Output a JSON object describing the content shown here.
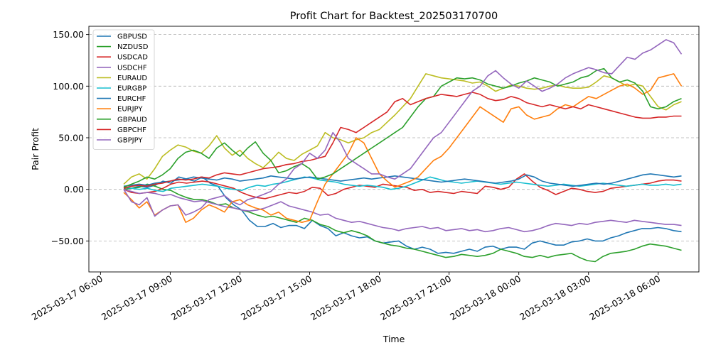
{
  "chart_data": {
    "type": "line",
    "title": "Profit Chart for Backtest_202503170700",
    "xlabel": "Time",
    "ylabel": "Pair Profit",
    "x_start": "2025-03-17 07:00",
    "x_end": "2025-03-18 07:00",
    "xlim": [
      "2025-03-17 05:30",
      "2025-03-18 07:45"
    ],
    "ylim": [
      -80,
      158
    ],
    "x_ticks": [
      "2025-03-17 06:00",
      "2025-03-17 09:00",
      "2025-03-17 12:00",
      "2025-03-17 15:00",
      "2025-03-17 18:00",
      "2025-03-17 21:00",
      "2025-03-18 00:00",
      "2025-03-18 03:00",
      "2025-03-18 06:00"
    ],
    "y_ticks": [
      "−50.00",
      "0.00",
      "50.00",
      "100.00",
      "150.00"
    ],
    "y_tick_values": [
      -50,
      0,
      50,
      100,
      150
    ],
    "grid": "y-dashed",
    "legend": "upper-left",
    "series": [
      {
        "name": "GBPUSD",
        "color": "#1f77b4",
        "values": [
          0,
          1,
          3,
          2,
          4,
          8,
          6,
          12,
          10,
          8,
          12,
          6,
          3,
          -8,
          -15,
          -20,
          -30,
          -36,
          -36,
          -33,
          -37,
          -35,
          -35,
          -38,
          -30,
          -35,
          -38,
          -45,
          -42,
          -45,
          -47,
          -46,
          -50,
          -52,
          -51,
          -50,
          -55,
          -58,
          -56,
          -58,
          -62,
          -61,
          -62,
          -60,
          -58,
          -60,
          -56,
          -55,
          -58,
          -56,
          -56,
          -58,
          -52,
          -50,
          -52,
          -54,
          -54,
          -51,
          -50,
          -48,
          -50,
          -50,
          -47,
          -45,
          -42,
          -40,
          -38,
          -38,
          -37,
          -38,
          -40,
          -41
        ]
      },
      {
        "name": "NZDUSD",
        "color": "#2ca02c",
        "values": [
          0,
          1,
          2,
          5,
          3,
          0,
          -1,
          -5,
          -8,
          -10,
          -10,
          -12,
          -15,
          -14,
          -18,
          -20,
          -22,
          -25,
          -27,
          -26,
          -28,
          -30,
          -32,
          -28,
          -30,
          -34,
          -36,
          -40,
          -42,
          -40,
          -42,
          -45,
          -50,
          -52,
          -54,
          -55,
          -57,
          -58,
          -60,
          -62,
          -64,
          -66,
          -65,
          -63,
          -64,
          -65,
          -64,
          -62,
          -58,
          -60,
          -62,
          -65,
          -66,
          -64,
          -66,
          -64,
          -63,
          -62,
          -66,
          -69,
          -70,
          -65,
          -62,
          -61,
          -60,
          -58,
          -55,
          -53,
          -54,
          -55,
          -57,
          -59
        ]
      },
      {
        "name": "USDCAD",
        "color": "#d62728",
        "values": [
          0,
          -3,
          -4,
          -3,
          -2,
          1,
          5,
          7,
          6,
          7,
          8,
          7,
          5,
          3,
          1,
          -3,
          -6,
          -8,
          -9,
          -7,
          -5,
          -3,
          -4,
          -2,
          2,
          1,
          -6,
          -4,
          0,
          2,
          4,
          3,
          2,
          5,
          4,
          3,
          2,
          -1,
          0,
          -3,
          -2,
          -3,
          -4,
          -2,
          -3,
          -4,
          3,
          2,
          0,
          2,
          10,
          15,
          8,
          2,
          -1,
          -5,
          -2,
          1,
          0,
          -2,
          -3,
          -2,
          1,
          2,
          3,
          4,
          5,
          6,
          8,
          9,
          9,
          8
        ]
      },
      {
        "name": "USDCHF",
        "color": "#9467bd",
        "values": [
          0,
          -2,
          -4,
          -3,
          -4,
          -6,
          -5,
          -8,
          -10,
          -12,
          -11,
          -13,
          -15,
          -17,
          -18,
          -20,
          -21,
          -20,
          -18,
          -15,
          -12,
          -16,
          -18,
          -20,
          -22,
          -25,
          -24,
          -28,
          -30,
          -32,
          -31,
          -33,
          -35,
          -37,
          -38,
          -40,
          -38,
          -37,
          -36,
          -38,
          -37,
          -40,
          -39,
          -38,
          -40,
          -39,
          -41,
          -40,
          -38,
          -37,
          -39,
          -41,
          -40,
          -38,
          -35,
          -33,
          -34,
          -35,
          -33,
          -34,
          -32,
          -31,
          -30,
          -31,
          -32,
          -30,
          -31,
          -32,
          -33,
          -34,
          -34,
          -35
        ]
      },
      {
        "name": "EURAUD",
        "color": "#bcbd22",
        "values": [
          5,
          12,
          15,
          10,
          20,
          32,
          38,
          43,
          41,
          37,
          35,
          42,
          52,
          40,
          33,
          38,
          30,
          25,
          21,
          28,
          36,
          30,
          28,
          34,
          38,
          42,
          55,
          50,
          48,
          45,
          48,
          50,
          55,
          58,
          65,
          72,
          80,
          88,
          100,
          112,
          110,
          108,
          107,
          106,
          105,
          103,
          104,
          100,
          95,
          98,
          101,
          100,
          98,
          97,
          98,
          100,
          101,
          99,
          98,
          98,
          99,
          104,
          110,
          108,
          104,
          100,
          102,
          100,
          90,
          80,
          77,
          82,
          85
        ]
      },
      {
        "name": "EURGBP",
        "color": "#17becf",
        "values": [
          2,
          1,
          0,
          1,
          -1,
          -2,
          1,
          2,
          3,
          4,
          5,
          4,
          3,
          1,
          0,
          -1,
          2,
          4,
          3,
          5,
          6,
          8,
          10,
          12,
          11,
          9,
          8,
          7,
          5,
          4,
          3,
          4,
          3,
          2,
          0,
          1,
          3,
          6,
          9,
          12,
          10,
          8,
          7,
          6,
          7,
          8,
          7,
          6,
          5,
          6,
          7,
          6,
          5,
          4,
          3,
          4,
          5,
          4,
          3,
          4,
          5,
          6,
          5,
          4,
          3,
          4,
          5,
          4,
          4,
          5,
          4,
          5
        ]
      },
      {
        "name": "EURCHF",
        "color": "#1f77b4",
        "values": [
          3,
          4,
          5,
          4,
          6,
          7,
          8,
          9,
          10,
          12,
          11,
          10,
          9,
          11,
          10,
          8,
          9,
          10,
          11,
          13,
          12,
          11,
          10,
          11,
          12,
          11,
          10,
          9,
          8,
          9,
          10,
          11,
          10,
          11,
          12,
          13,
          12,
          11,
          10,
          9,
          8,
          7,
          8,
          9,
          10,
          9,
          8,
          7,
          6,
          7,
          8,
          10,
          14,
          12,
          8,
          6,
          5,
          4,
          3,
          4,
          5,
          6,
          5,
          6,
          8,
          10,
          12,
          14,
          15,
          14,
          13,
          12,
          13
        ]
      },
      {
        "name": "EURJPY",
        "color": "#ff7f0e",
        "values": [
          -3,
          -10,
          -18,
          -12,
          -25,
          -20,
          -16,
          -15,
          -32,
          -28,
          -20,
          -15,
          -18,
          -22,
          -12,
          -10,
          -15,
          -18,
          -20,
          -25,
          -22,
          -28,
          -30,
          -32,
          -30,
          -12,
          5,
          15,
          25,
          35,
          50,
          45,
          30,
          15,
          8,
          2,
          5,
          8,
          12,
          20,
          28,
          32,
          40,
          50,
          60,
          70,
          80,
          75,
          70,
          65,
          78,
          80,
          72,
          68,
          70,
          72,
          78,
          82,
          80,
          85,
          90,
          88,
          92,
          96,
          100,
          102,
          98,
          92,
          96,
          108,
          110,
          112,
          100
        ]
      },
      {
        "name": "GBPAUD",
        "color": "#2ca02c",
        "values": [
          2,
          5,
          8,
          12,
          10,
          14,
          20,
          30,
          36,
          38,
          35,
          30,
          40,
          45,
          38,
          32,
          40,
          46,
          35,
          28,
          16,
          18,
          22,
          25,
          20,
          10,
          12,
          15,
          20,
          25,
          30,
          35,
          40,
          45,
          50,
          55,
          60,
          70,
          80,
          88,
          90,
          100,
          104,
          108,
          107,
          108,
          106,
          102,
          100,
          98,
          100,
          103,
          105,
          108,
          106,
          104,
          100,
          102,
          104,
          108,
          110,
          115,
          117,
          108,
          104,
          106,
          103,
          95,
          80,
          78,
          80,
          85,
          88
        ]
      },
      {
        "name": "GBPCHF",
        "color": "#d62728",
        "values": [
          1,
          3,
          4,
          3,
          5,
          6,
          8,
          10,
          9,
          10,
          12,
          11,
          14,
          16,
          15,
          14,
          16,
          18,
          20,
          21,
          22,
          24,
          25,
          27,
          28,
          30,
          32,
          45,
          60,
          58,
          55,
          60,
          65,
          70,
          75,
          85,
          88,
          82,
          85,
          88,
          90,
          92,
          91,
          90,
          92,
          94,
          92,
          88,
          86,
          87,
          90,
          88,
          84,
          82,
          80,
          82,
          80,
          78,
          80,
          78,
          82,
          80,
          78,
          76,
          74,
          72,
          70,
          69,
          69,
          70,
          70,
          71,
          71
        ]
      },
      {
        "name": "GBPJPY",
        "color": "#9467bd",
        "values": [
          0,
          -12,
          -15,
          -8,
          -26,
          -20,
          -16,
          -15,
          -25,
          -22,
          -18,
          -10,
          -8,
          -6,
          -12,
          -15,
          -10,
          -8,
          -5,
          -2,
          5,
          10,
          20,
          25,
          35,
          30,
          38,
          55,
          45,
          30,
          25,
          20,
          15,
          15,
          12,
          10,
          15,
          20,
          30,
          40,
          50,
          55,
          65,
          75,
          85,
          95,
          100,
          110,
          115,
          108,
          102,
          98,
          105,
          100,
          95,
          98,
          102,
          108,
          112,
          115,
          118,
          116,
          113,
          112,
          120,
          128,
          126,
          132,
          135,
          140,
          145,
          142,
          131
        ]
      }
    ]
  }
}
